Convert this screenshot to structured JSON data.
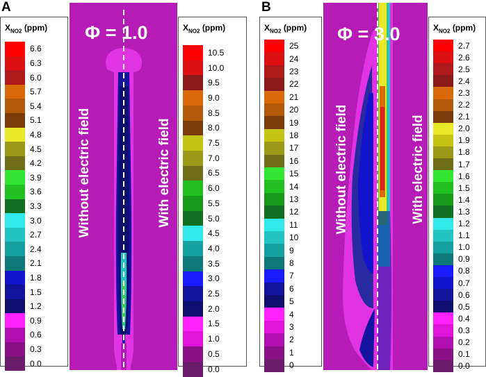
{
  "panels": [
    {
      "letter": "A",
      "title": "Φ = 1.0",
      "left_label": "Without electric field",
      "right_label": "With electric field",
      "left_legend": {
        "title_main": "X",
        "title_sub": "NO2",
        "title_unit": "(ppm)",
        "ticks": [
          "6.6",
          "6.3",
          "6.0",
          "5.7",
          "5.4",
          "5.1",
          "4.8",
          "4.5",
          "4.2",
          "3.9",
          "3.6",
          "3.3",
          "3.0",
          "2.7",
          "2.4",
          "2.1",
          "1.8",
          "1.5",
          "1.2",
          "0.9",
          "0.6",
          "0.3",
          "0.0"
        ]
      },
      "right_legend": {
        "title_main": "X",
        "title_sub": "NO2",
        "title_unit": "(ppm)",
        "ticks": [
          "10.5",
          "10.0",
          "9.5",
          "9.0",
          "8.5",
          "8.0",
          "7.5",
          "7.0",
          "6.5",
          "6.0",
          "5.5",
          "5.0",
          "4.5",
          "4.0",
          "3.5",
          "3.0",
          "2.5",
          "2.0",
          "1.5",
          "1.0",
          "0.5",
          "0.0"
        ]
      }
    },
    {
      "letter": "B",
      "title": "Φ = 3.0",
      "left_label": "Without electric field",
      "right_label": "With electric field",
      "left_legend": {
        "title_main": "X",
        "title_sub": "NO2",
        "title_unit": "(ppm)",
        "ticks": [
          "25",
          "24",
          "23",
          "22",
          "21",
          "20",
          "19",
          "18",
          "17",
          "16",
          "15",
          "14",
          "13",
          "12",
          "11",
          "10",
          "9",
          "8",
          "7",
          "6",
          "5",
          "4",
          "3",
          "2",
          "1",
          "0"
        ]
      },
      "right_legend": {
        "title_main": "X",
        "title_sub": "NO2",
        "title_unit": "(ppm)",
        "ticks": [
          "2.7",
          "2.6",
          "2.5",
          "2.4",
          "2.3",
          "2.2",
          "2.1",
          "2.0",
          "1.9",
          "1.8",
          "1.7",
          "1.6",
          "1.5",
          "1.4",
          "1.3",
          "1.2",
          "1.1",
          "1.0",
          "0.9",
          "0.8",
          "0.7",
          "0.6",
          "0.5",
          "0.4",
          "0.3",
          "0.2",
          "0.1",
          "0.0"
        ]
      }
    }
  ],
  "colormap": [
    "#ff0000",
    "#dd1111",
    "#b01a1a",
    "#8a1a1a",
    "#d86a0a",
    "#b25a0a",
    "#7a3a0a",
    "#e8e82a",
    "#c4c414",
    "#9a9a18",
    "#6e6e18",
    "#33e633",
    "#22c022",
    "#17991a",
    "#0f6e22",
    "#33e8e8",
    "#22c4c4",
    "#17a0a0",
    "#0f7878",
    "#1a1aff",
    "#1414cc",
    "#12129a",
    "#0e0e6e",
    "#ff22ff",
    "#e014d8",
    "#b010b0",
    "#8a1088",
    "#6a1a6a"
  ],
  "field_colors": {
    "background": "#b51bb5",
    "outer_layer": "#e133e1",
    "mid_layer": "#2a2aa0",
    "core": "#1010aa",
    "inner_hot": "#33bbbb",
    "green": "#44cc44",
    "red": "#dd2222",
    "orange": "#d86a0a",
    "yellow": "#e8e82a"
  }
}
